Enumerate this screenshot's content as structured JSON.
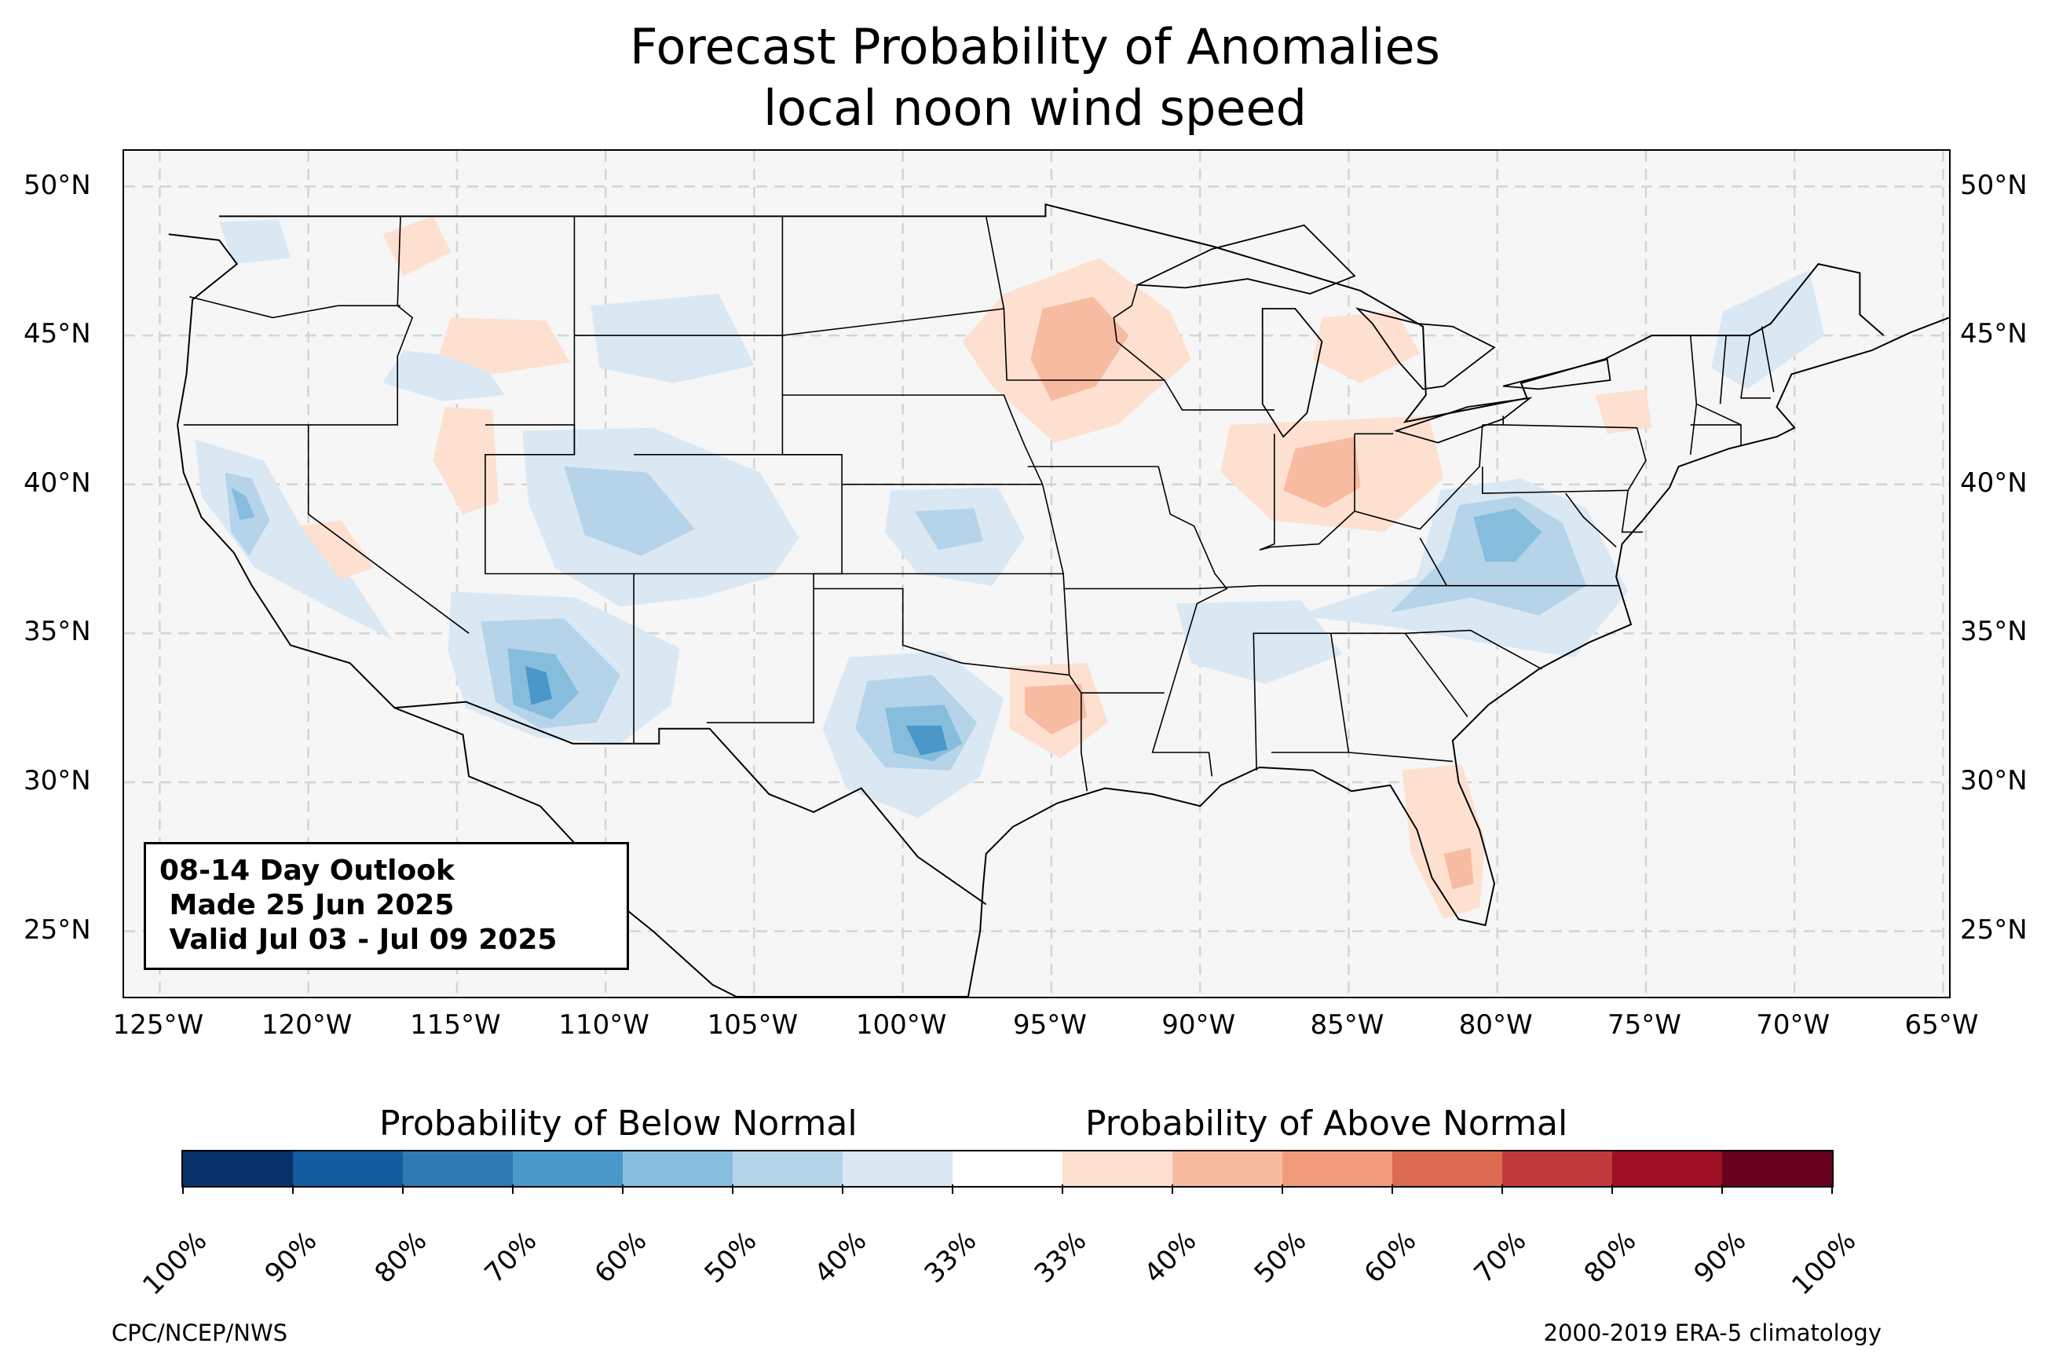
{
  "title": "Forecast Probability of Anomalies",
  "subtitle": "local noon wind speed",
  "outlook": {
    "line1": "08-14 Day Outlook",
    "line2": " Made 25 Jun 2025",
    "line3": " Valid Jul 03 - Jul 09 2025"
  },
  "lat_labels": [
    "50°N",
    "45°N",
    "40°N",
    "35°N",
    "30°N",
    "25°N"
  ],
  "lon_labels": [
    "125°W",
    "120°W",
    "115°W",
    "110°W",
    "105°W",
    "100°W",
    "95°W",
    "90°W",
    "85°W",
    "80°W",
    "75°W",
    "70°W",
    "65°W"
  ],
  "colorbar": {
    "below_heading": "Probability of Below Normal",
    "above_heading": "Probability of Above Normal",
    "tick_labels": [
      "100%",
      "90%",
      "80%",
      "70%",
      "60%",
      "50%",
      "40%",
      "33%",
      "33%",
      "40%",
      "50%",
      "60%",
      "70%",
      "80%",
      "90%",
      "100%"
    ],
    "colors": [
      "#08306b",
      "#155ba0",
      "#2f79b5",
      "#4a98c9",
      "#87bddc",
      "#b5d4e9",
      "#dae8f4",
      "#ffffff",
      "#fde0d0",
      "#f7bba1",
      "#f09c7c",
      "#dc6b51",
      "#c13a3b",
      "#9e0f24",
      "#67001f"
    ]
  },
  "credits": {
    "left": "CPC/NCEP/NWS",
    "right": "2000-2019 ERA-5 climatology"
  },
  "map": {
    "extent": {
      "lon_min": -126.2,
      "lon_max": -64.8,
      "lat_min": 22.8,
      "lat_max": 51.2
    },
    "below_normal_regions": [
      {
        "name": "Southern Arizona / Sonora",
        "category": "60-70%"
      },
      {
        "name": "Central Texas",
        "category": "60-70%"
      },
      {
        "name": "Virginia / Appalachians",
        "category": "60-70%"
      },
      {
        "name": "Northern California",
        "category": "40-50%"
      },
      {
        "name": "Colorado / Utah",
        "category": "40-50%"
      },
      {
        "name": "Kansas",
        "category": "40-50%"
      },
      {
        "name": "Tennessee / Carolinas",
        "category": "40-50%"
      },
      {
        "name": "Maine / New Hampshire",
        "category": "33-40%"
      }
    ],
    "above_normal_regions": [
      {
        "name": "Iowa / Minnesota",
        "category": "40-50%"
      },
      {
        "name": "Indiana / Ohio",
        "category": "40-50%"
      },
      {
        "name": "East Texas / Louisiana",
        "category": "40-50%"
      },
      {
        "name": "Florida",
        "category": "40-50%"
      },
      {
        "name": "Idaho / Montana",
        "category": "33-40%"
      },
      {
        "name": "Nevada",
        "category": "33-40%"
      },
      {
        "name": "Michigan",
        "category": "33-40%"
      }
    ]
  }
}
